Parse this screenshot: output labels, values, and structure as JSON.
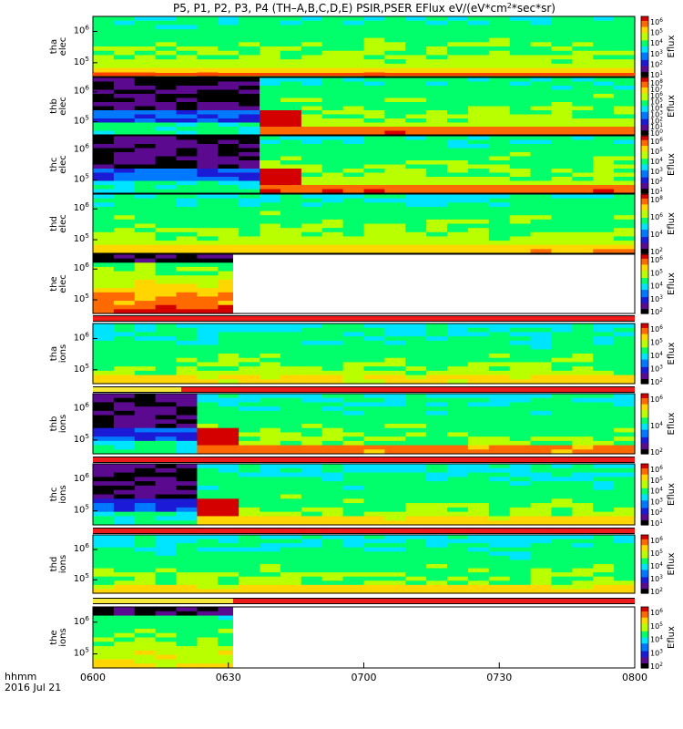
{
  "chart_data": {
    "type": "heatmap",
    "title": "P5, P1, P2, P3, P4 (TH-A,B,C,D,E) PSIR,PSER EFlux eV/(eV*cm^2*sec*sr)",
    "title_parts": {
      "main": "P5, P1, P2, P3, P4 (TH–A,B,C,D,E) PSIR,PSER EFlux eV/(eV*cm",
      "sup": "2",
      "tail": "*sec*sr)"
    },
    "xlabel_top": "hhmm",
    "xlabel_bottom": "2016 Jul 21",
    "x_ticks": [
      "0600",
      "0630",
      "0700",
      "0730",
      "0800"
    ],
    "x_range": [
      "0600",
      "0800"
    ],
    "colorbar_label": "Eflux",
    "panels": [
      {
        "label1": "tha",
        "label2": "elec",
        "y_ticks": [
          "10^6",
          "10^5"
        ],
        "cb_ticks": [
          "10^6",
          "10^5",
          "10^4",
          "10^3",
          "10^2",
          "10^1"
        ],
        "bar_below": "red"
      },
      {
        "label1": "thb",
        "label2": "elec",
        "y_ticks": [
          "10^6",
          "10^5"
        ],
        "cb_ticks": [
          "10^8",
          "10^7",
          "10^6",
          "10^5",
          "10^4",
          "10^3",
          "10^2",
          "10^1",
          "10^0"
        ],
        "bar_below": "none"
      },
      {
        "label1": "thc",
        "label2": "elec",
        "y_ticks": [
          "10^6",
          "10^5"
        ],
        "cb_ticks": [
          "10^6",
          "10^5",
          "10^4",
          "10^3",
          "10^2",
          "10^1"
        ],
        "bar_below": "none"
      },
      {
        "label1": "thd",
        "label2": "elec",
        "y_ticks": [
          "10^6",
          "10^5"
        ],
        "cb_ticks": [
          "10^8",
          "10^6",
          "10^4",
          "10^2"
        ],
        "bar_below": "none"
      },
      {
        "label1": "the",
        "label2": "elec",
        "y_ticks": [
          "10^6",
          "10^5"
        ],
        "cb_ticks": [
          "10^6",
          "10^5",
          "10^4",
          "10^3",
          "10^2"
        ],
        "bar_below": "red"
      },
      {
        "label1": "tha",
        "label2": "ions",
        "y_ticks": [
          "10^6",
          "10^5"
        ],
        "cb_ticks": [
          "10^6",
          "10^5",
          "10^4",
          "10^3",
          "10^2"
        ],
        "bar_below": "yellow-red"
      },
      {
        "label1": "thb",
        "label2": "ions",
        "y_ticks": [
          "10^6",
          "10^5"
        ],
        "cb_ticks": [
          "10^6",
          "10^4",
          "10^2"
        ],
        "bar_below": "red"
      },
      {
        "label1": "thc",
        "label2": "ions",
        "y_ticks": [
          "10^6",
          "10^5"
        ],
        "cb_ticks": [
          "10^6",
          "10^5",
          "10^4",
          "10^3",
          "10^2",
          "10^1"
        ],
        "bar_below": "red"
      },
      {
        "label1": "thd",
        "label2": "ions",
        "y_ticks": [
          "10^6",
          "10^5"
        ],
        "cb_ticks": [
          "10^6",
          "10^5",
          "10^4",
          "10^3",
          "10^2"
        ],
        "bar_below": "yellow-red"
      },
      {
        "label1": "the",
        "label2": "ions",
        "y_ticks": [
          "10^6",
          "10^5"
        ],
        "cb_ticks": [
          "10^6",
          "10^5",
          "10^4",
          "10^3",
          "10^2"
        ],
        "bar_below": "none"
      }
    ],
    "colormap": [
      "#000000",
      "#5b0a8f",
      "#1b1bd6",
      "#0078ff",
      "#00e5ff",
      "#00ff6a",
      "#b9ff00",
      "#ffd600",
      "#ff6a00",
      "#d40000"
    ],
    "bar_colors": {
      "red": "#ee1b1b",
      "yellow": "#f5e83a",
      "black": "#000000"
    }
  }
}
